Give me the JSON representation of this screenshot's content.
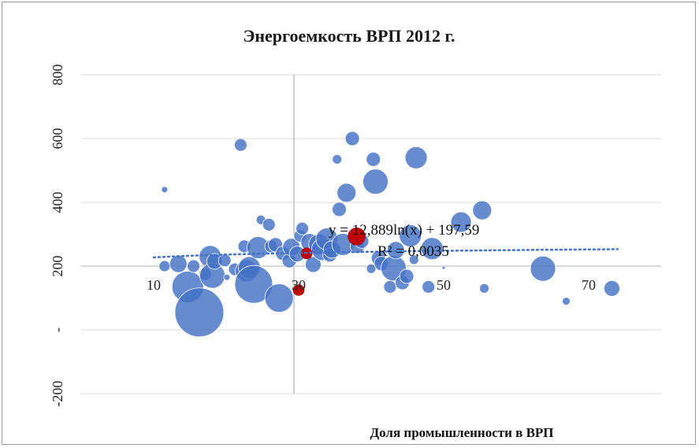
{
  "chart_data": {
    "type": "scatter",
    "title": "Энергоемкость ВРП 2012 г.",
    "xlabel": "Доля промышленности в ВРП",
    "ylabel": "",
    "xlim": [
      0,
      80
    ],
    "ylim": [
      -200,
      800
    ],
    "grid": true,
    "x_ticks": [
      {
        "value": 10,
        "label": "10"
      },
      {
        "value": 30,
        "label": "30"
      },
      {
        "value": 50,
        "label": "50"
      },
      {
        "value": 70,
        "label": "70"
      }
    ],
    "y_ticks": [
      {
        "value": 800,
        "label": "800"
      },
      {
        "value": 600,
        "label": "600"
      },
      {
        "value": 400,
        "label": "400"
      },
      {
        "value": 200,
        "label": "200"
      },
      {
        "value": 0,
        "label": "-"
      },
      {
        "value": -200,
        "label": "-200"
      }
    ],
    "bubble_color": "#4472c4",
    "highlight_color": "#c00000",
    "trendline_color": "#4472c4",
    "series": [
      {
        "points": [
          [
            11.5,
            440,
            4
          ],
          [
            11.5,
            200,
            7
          ],
          [
            13.4,
            207,
            11
          ],
          [
            14.7,
            135,
            20
          ],
          [
            15.5,
            200,
            8
          ],
          [
            16.3,
            55,
            31
          ],
          [
            17.1,
            175,
            8
          ],
          [
            17.8,
            230,
            14
          ],
          [
            18.1,
            170,
            16
          ],
          [
            18.4,
            215,
            10
          ],
          [
            19.8,
            218,
            8
          ],
          [
            20.1,
            165,
            4
          ],
          [
            21.2,
            190,
            8
          ],
          [
            22.0,
            580,
            8
          ],
          [
            22.5,
            262,
            8
          ],
          [
            22.8,
            185,
            14
          ],
          [
            23.2,
            195,
            14
          ],
          [
            23.8,
            143,
            24
          ],
          [
            24.4,
            258,
            14
          ],
          [
            24.8,
            345,
            6
          ],
          [
            25.9,
            330,
            8
          ],
          [
            26.2,
            262,
            8
          ],
          [
            26.8,
            267,
            9
          ],
          [
            27.3,
            100,
            18
          ],
          [
            27.8,
            240,
            9
          ],
          [
            28.7,
            217,
            9
          ],
          [
            29.0,
            260,
            11
          ],
          [
            29.8,
            238,
            10
          ],
          [
            30.2,
            295,
            8
          ],
          [
            30.5,
            318,
            8
          ],
          [
            31.5,
            275,
            11
          ],
          [
            32.0,
            205,
            10
          ],
          [
            32.8,
            268,
            13
          ],
          [
            33.3,
            252,
            14
          ],
          [
            33.9,
            285,
            14
          ],
          [
            34.3,
            235,
            9
          ],
          [
            34.6,
            252,
            11
          ],
          [
            35.3,
            535,
            6
          ],
          [
            35.6,
            378,
            9
          ],
          [
            36.1,
            268,
            14
          ],
          [
            36.6,
            430,
            12
          ],
          [
            37.4,
            600,
            9
          ],
          [
            38.1,
            262,
            9
          ],
          [
            38.7,
            278,
            9
          ],
          [
            40.0,
            192,
            6
          ],
          [
            40.3,
            535,
            9
          ],
          [
            40.6,
            465,
            16
          ],
          [
            41.0,
            225,
            9
          ],
          [
            41.4,
            208,
            9
          ],
          [
            42.6,
            135,
            8
          ],
          [
            43.1,
            193,
            16
          ],
          [
            43.4,
            250,
            11
          ],
          [
            44.3,
            148,
            9
          ],
          [
            44.9,
            168,
            9
          ],
          [
            45.4,
            295,
            14
          ],
          [
            45.9,
            220,
            6
          ],
          [
            46.2,
            540,
            14
          ],
          [
            47.9,
            135,
            8
          ],
          [
            48.4,
            255,
            14
          ],
          [
            50.0,
            195,
            2
          ],
          [
            52.4,
            338,
            13
          ],
          [
            55.3,
            375,
            12
          ],
          [
            55.6,
            130,
            6
          ],
          [
            63.7,
            192,
            16
          ],
          [
            66.9,
            90,
            5
          ],
          [
            73.2,
            130,
            10
          ]
        ]
      },
      {
        "points": [
          [
            30.0,
            125,
            7
          ],
          [
            31.1,
            240,
            7
          ],
          [
            38.0,
            293,
            11
          ]
        ]
      }
    ],
    "trendline": {
      "type": "log",
      "a": 12.889,
      "b": 197.59,
      "x_range": [
        10,
        74
      ],
      "equation": "y = 12,889ln(x) + 197,59",
      "r2": "R² = 0,0035"
    }
  }
}
